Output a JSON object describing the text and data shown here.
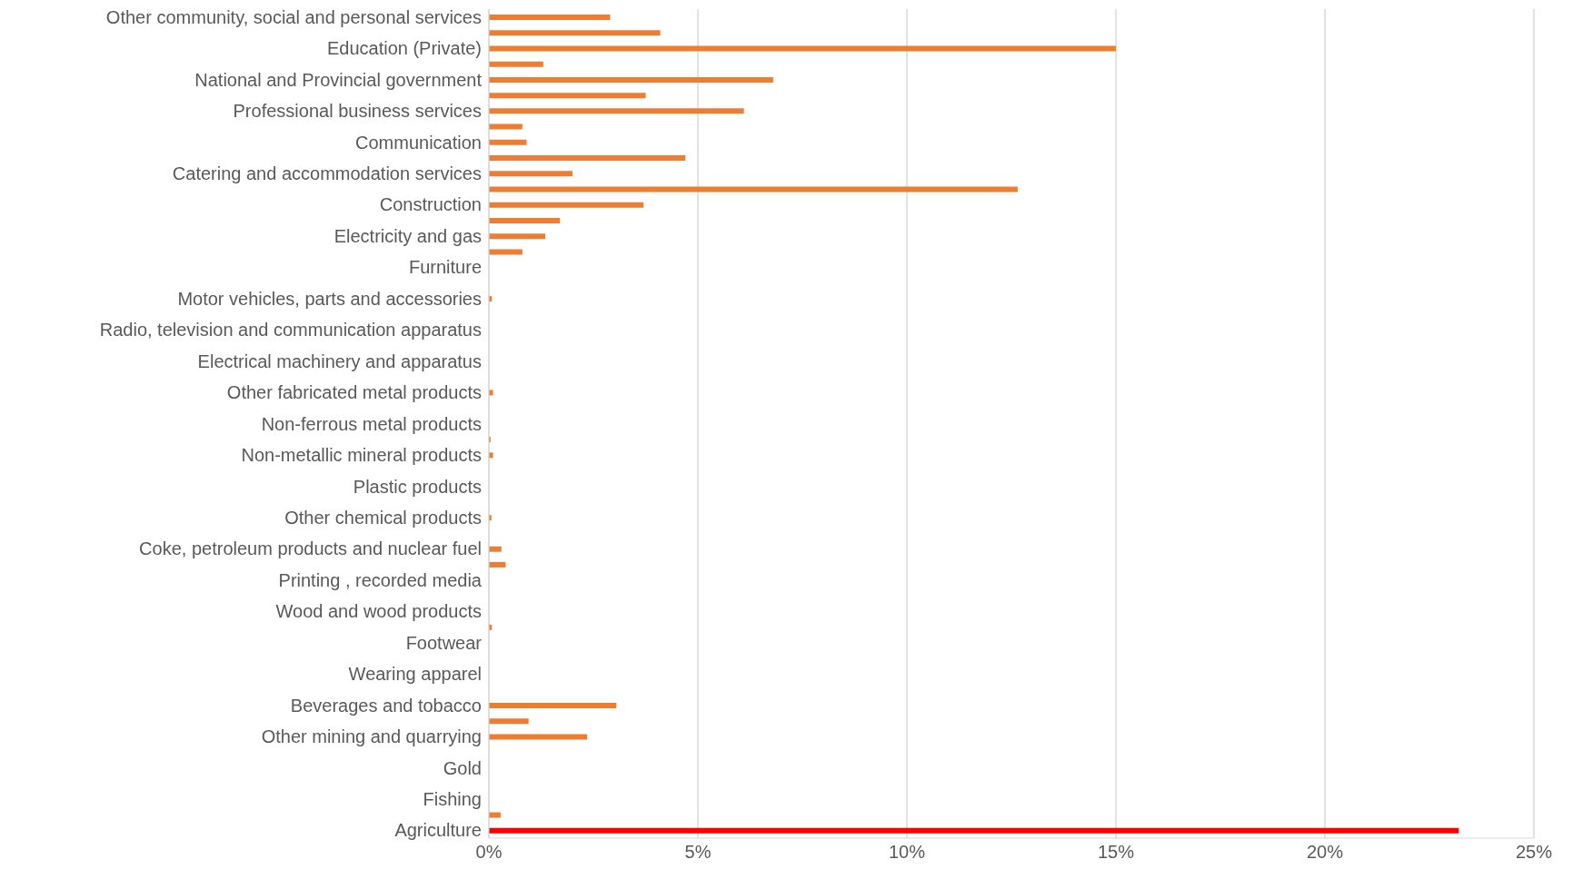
{
  "chart_data": {
    "type": "bar",
    "orientation": "horizontal",
    "categories": [
      "Other community, social and personal services",
      null,
      "Education (Private)",
      null,
      "National and Provincial government",
      null,
      "Professional business services",
      null,
      "Communication",
      null,
      "Catering and accommodation services",
      null,
      "Construction",
      null,
      "Electricity and gas",
      null,
      "Furniture",
      null,
      "Motor vehicles, parts and accessories",
      null,
      "Radio, television and communication apparatus",
      null,
      "Electrical machinery and apparatus",
      null,
      "Other fabricated metal products",
      null,
      "Non-ferrous metal products",
      null,
      "Non-metallic mineral products",
      null,
      "Plastic products",
      null,
      "Other chemical products",
      null,
      "Coke, petroleum products and nuclear fuel",
      null,
      "Printing , recorded media",
      null,
      "Wood and wood products",
      null,
      "Footwear",
      null,
      "Wearing apparel",
      null,
      "Beverages and tobacco",
      null,
      "Other mining and quarrying",
      null,
      "Gold",
      null,
      "Fishing",
      null,
      "Agriculture"
    ],
    "values": [
      2.9,
      4.1,
      15.0,
      1.3,
      6.8,
      3.75,
      6.1,
      0.8,
      0.9,
      4.7,
      2.0,
      12.65,
      3.7,
      1.7,
      1.35,
      0.8,
      0,
      0,
      0.07,
      0,
      0,
      0,
      0,
      null,
      0.1,
      0,
      0,
      0.04,
      0.1,
      0,
      0,
      null,
      0.06,
      0,
      0.3,
      0.4,
      0,
      null,
      null,
      0.07,
      0,
      0,
      null,
      0,
      3.05,
      0.95,
      2.35,
      0,
      0,
      0,
      0,
      0.28,
      23.2
    ],
    "colors": [
      "#ed7d31",
      "#ed7d31",
      "#ed7d31",
      "#ed7d31",
      "#ed7d31",
      "#ed7d31",
      "#ed7d31",
      "#ed7d31",
      "#ed7d31",
      "#ed7d31",
      "#ed7d31",
      "#ed7d31",
      "#ed7d31",
      "#ed7d31",
      "#ed7d31",
      "#ed7d31",
      "#ed7d31",
      "#ed7d31",
      "#ed7d31",
      "#ed7d31",
      "#ed7d31",
      "#ed7d31",
      "#ed7d31",
      "#ed7d31",
      "#ed7d31",
      "#ed7d31",
      "#ed7d31",
      "#ed7d31",
      "#ed7d31",
      "#ed7d31",
      "#ed7d31",
      "#ed7d31",
      "#ed7d31",
      "#ed7d31",
      "#ed7d31",
      "#ed7d31",
      "#ed7d31",
      "#ed7d31",
      "#ed7d31",
      "#ed7d31",
      "#ed7d31",
      "#ed7d31",
      "#ed7d31",
      "#ed7d31",
      "#ed7d31",
      "#ed7d31",
      "#ed7d31",
      "#ed7d31",
      "#ed7d31",
      "#ed7d31",
      "#ed7d31",
      "#ed7d31",
      "#ff0000"
    ],
    "xlim": [
      0,
      25
    ],
    "xticks": [
      {
        "value": 0,
        "label": "0%"
      },
      {
        "value": 5,
        "label": "5%"
      },
      {
        "value": 10,
        "label": "10%"
      },
      {
        "value": 15,
        "label": "15%"
      },
      {
        "value": 20,
        "label": "20%"
      },
      {
        "value": 25,
        "label": "25%"
      }
    ],
    "grid": "x"
  }
}
